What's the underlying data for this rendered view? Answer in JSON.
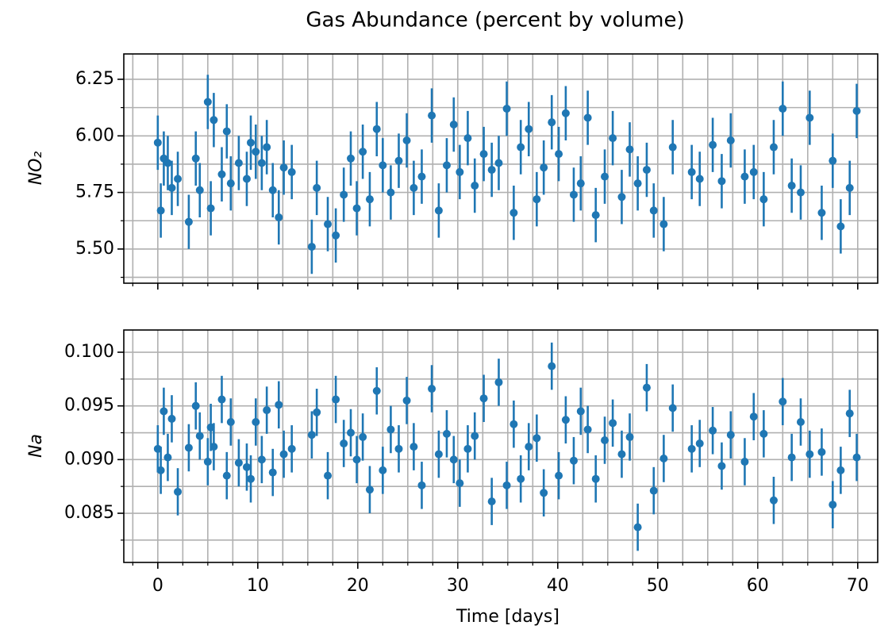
{
  "chart_data": [
    {
      "type": "errorbar",
      "title": "Gas Abundance (percent by volume)",
      "ylabel": "NO₂",
      "color": "#1f77b4",
      "grid": true,
      "xlim": [
        -3.4,
        72
      ],
      "xticks": [
        0,
        10,
        20,
        30,
        40,
        50,
        60,
        70
      ],
      "xminorticks": [
        -2.5,
        2.5,
        5,
        7.5,
        12.5,
        15,
        17.5,
        22.5,
        25,
        27.5,
        32.5,
        35,
        37.5,
        42.5,
        45,
        47.5,
        52.5,
        55,
        57.5,
        62.5,
        65,
        67.5
      ],
      "ylim": [
        5.349,
        6.362
      ],
      "yticks": [
        {
          "value": 5.5,
          "label": "5.50"
        },
        5.75,
        {
          "value": 6.0,
          "label": "6.00"
        },
        6.25
      ],
      "yminorticks": [
        5.375,
        5.625,
        5.875,
        6.125
      ],
      "yerr": 0.12,
      "x": [
        0.0,
        0.3,
        0.6,
        1.0,
        1.4,
        2.0,
        3.1,
        3.8,
        4.2,
        5.0,
        5.3,
        5.6,
        6.4,
        6.9,
        7.3,
        8.1,
        8.9,
        9.3,
        9.8,
        10.4,
        10.9,
        11.5,
        12.1,
        12.6,
        13.4,
        15.4,
        15.9,
        17.0,
        17.8,
        18.6,
        19.3,
        19.9,
        20.5,
        21.2,
        21.9,
        22.5,
        23.3,
        24.1,
        24.9,
        25.6,
        26.4,
        27.4,
        28.1,
        28.9,
        29.6,
        30.2,
        31.0,
        31.7,
        32.6,
        33.4,
        34.1,
        34.9,
        35.6,
        36.3,
        37.1,
        37.9,
        38.6,
        39.4,
        40.1,
        40.8,
        41.6,
        42.3,
        43.0,
        43.8,
        44.7,
        45.5,
        46.4,
        47.2,
        48.0,
        48.9,
        49.6,
        50.6,
        51.5,
        53.4,
        54.2,
        55.5,
        56.4,
        57.3,
        58.7,
        59.6,
        60.6,
        61.6,
        62.5,
        63.4,
        64.3,
        65.2,
        66.4,
        67.5,
        68.3,
        69.2,
        69.9
      ],
      "values": [
        5.97,
        5.67,
        5.9,
        5.88,
        5.77,
        5.81,
        5.62,
        5.9,
        5.76,
        6.15,
        5.68,
        6.07,
        5.83,
        6.02,
        5.79,
        5.88,
        5.81,
        5.97,
        5.93,
        5.88,
        5.95,
        5.76,
        5.64,
        5.86,
        5.84,
        5.51,
        5.77,
        5.61,
        5.56,
        5.74,
        5.9,
        5.68,
        5.93,
        5.72,
        6.03,
        5.87,
        5.75,
        5.89,
        5.98,
        5.77,
        5.82,
        6.09,
        5.67,
        5.87,
        6.05,
        5.84,
        5.99,
        5.78,
        5.92,
        5.85,
        5.88,
        6.12,
        5.66,
        5.95,
        6.03,
        5.72,
        5.86,
        6.06,
        5.92,
        6.1,
        5.74,
        5.79,
        6.08,
        5.65,
        5.82,
        5.99,
        5.73,
        5.94,
        5.79,
        5.85,
        5.67,
        5.61,
        5.95,
        5.84,
        5.81,
        5.96,
        5.8,
        5.98,
        5.82,
        5.84,
        5.72,
        5.95,
        6.12,
        5.78,
        5.75,
        6.08,
        5.66,
        5.89,
        5.6,
        5.77,
        6.11
      ]
    },
    {
      "type": "errorbar",
      "xlabel": "Time [days]",
      "ylabel": "Na",
      "color": "#1f77b4",
      "grid": true,
      "xlim": [
        -3.4,
        72
      ],
      "xticks": [
        0,
        10,
        20,
        30,
        40,
        50,
        60,
        70
      ],
      "xminorticks": [
        -2.5,
        2.5,
        5,
        7.5,
        12.5,
        15,
        17.5,
        22.5,
        25,
        27.5,
        32.5,
        35,
        37.5,
        42.5,
        45,
        47.5,
        52.5,
        55,
        57.5,
        62.5,
        65,
        67.5
      ],
      "ylim": [
        0.08042,
        0.10207
      ],
      "yticks": [
        0.085,
        {
          "value": 0.09,
          "label": "0.090"
        },
        0.095,
        {
          "value": 0.1,
          "label": "0.100"
        }
      ],
      "yminorticks": [
        0.0825,
        0.0875,
        0.0925,
        0.0975
      ],
      "yerr": 0.0022,
      "x": [
        0.0,
        0.3,
        0.6,
        1.0,
        1.4,
        2.0,
        3.1,
        3.8,
        4.2,
        5.0,
        5.3,
        5.6,
        6.4,
        6.9,
        7.3,
        8.1,
        8.9,
        9.3,
        9.8,
        10.4,
        10.9,
        11.5,
        12.1,
        12.6,
        13.4,
        15.4,
        15.9,
        17.0,
        17.8,
        18.6,
        19.3,
        19.9,
        20.5,
        21.2,
        21.9,
        22.5,
        23.3,
        24.1,
        24.9,
        25.6,
        26.4,
        27.4,
        28.1,
        28.9,
        29.6,
        30.2,
        31.0,
        31.7,
        32.6,
        33.4,
        34.1,
        34.9,
        35.6,
        36.3,
        37.1,
        37.9,
        38.6,
        39.4,
        40.1,
        40.8,
        41.6,
        42.3,
        43.0,
        43.8,
        44.7,
        45.5,
        46.4,
        47.2,
        48.0,
        48.9,
        49.6,
        50.6,
        51.5,
        53.4,
        54.2,
        55.5,
        56.4,
        57.3,
        58.7,
        59.6,
        60.6,
        61.6,
        62.5,
        63.4,
        64.3,
        65.2,
        66.4,
        67.5,
        68.3,
        69.2,
        69.9
      ],
      "values": [
        0.091,
        0.089,
        0.0945,
        0.0902,
        0.0938,
        0.087,
        0.0911,
        0.095,
        0.0922,
        0.0898,
        0.093,
        0.0912,
        0.0956,
        0.0885,
        0.0935,
        0.0897,
        0.0893,
        0.0882,
        0.0935,
        0.09,
        0.0946,
        0.0888,
        0.0951,
        0.0905,
        0.091,
        0.0923,
        0.0944,
        0.0885,
        0.0956,
        0.0915,
        0.0925,
        0.09,
        0.0921,
        0.0872,
        0.0964,
        0.089,
        0.0928,
        0.091,
        0.0955,
        0.0912,
        0.0876,
        0.0966,
        0.0905,
        0.0924,
        0.09,
        0.0878,
        0.091,
        0.0922,
        0.0957,
        0.0861,
        0.0972,
        0.0876,
        0.0933,
        0.0882,
        0.0912,
        0.092,
        0.0869,
        0.0987,
        0.0885,
        0.0937,
        0.0899,
        0.0945,
        0.0928,
        0.0882,
        0.0918,
        0.0934,
        0.0905,
        0.0921,
        0.0837,
        0.0967,
        0.0871,
        0.0901,
        0.0948,
        0.091,
        0.0915,
        0.0927,
        0.0894,
        0.0923,
        0.0898,
        0.094,
        0.0924,
        0.0862,
        0.0954,
        0.0902,
        0.0935,
        0.0905,
        0.0907,
        0.0858,
        0.089,
        0.0943,
        0.0902
      ]
    }
  ]
}
